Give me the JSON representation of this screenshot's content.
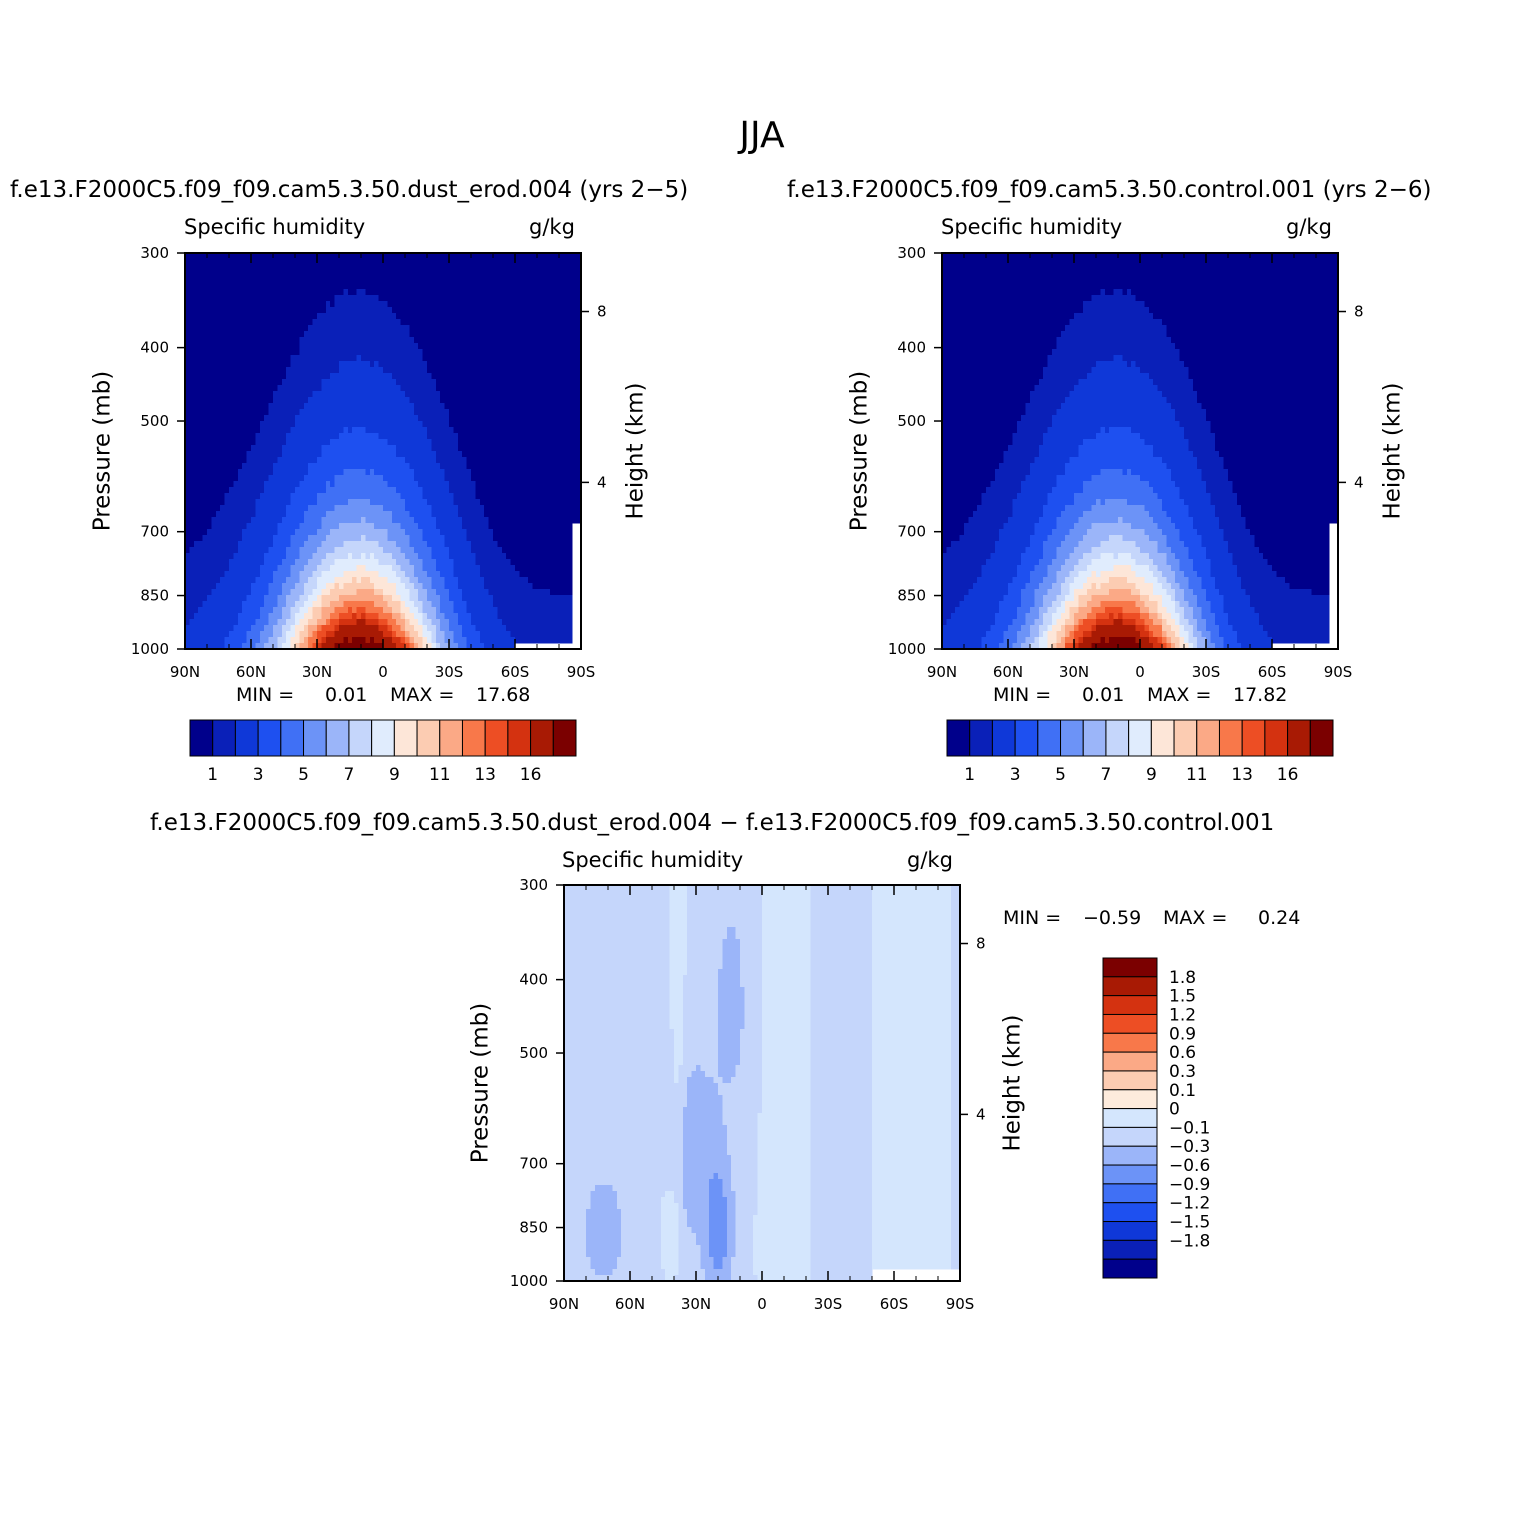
{
  "figure": {
    "title": "JJA",
    "season": "JJA"
  },
  "colors": {
    "abs_scale": [
      "#00008b",
      "#0a20b8",
      "#0f38d8",
      "#1e50f0",
      "#4070f5",
      "#6c93f7",
      "#9bb5f9",
      "#c5d6fb",
      "#e0ecfd",
      "#fde6d8",
      "#fcccb2",
      "#fba986",
      "#f8784a",
      "#ed4e24",
      "#d43210",
      "#a81a04",
      "#7b0000"
    ],
    "diff_scale": [
      "#00008b",
      "#0a20b8",
      "#0f38d8",
      "#1e50f0",
      "#4070f5",
      "#6c93f7",
      "#9bb5f9",
      "#c5d6fb",
      "#d4e6fd",
      "#fdebdc",
      "#fcccb2",
      "#fba986",
      "#f8784a",
      "#ed4e24",
      "#d43210",
      "#a81a04",
      "#7b0000"
    ]
  },
  "chart_data": [
    {
      "id": "panel-a",
      "type": "heatmap",
      "title": "f.e13.F2000C5.f09_f09.cam5.3.50.dust_erod.004 (yrs 2−5)",
      "field_label": "Specific humidity",
      "units": "g/kg",
      "xlabel": "",
      "ylabel": "Pressure (mb)",
      "ylabel_right": "Height (km)",
      "x_ticks": [
        "90N",
        "60N",
        "30N",
        "0",
        "30S",
        "60S",
        "90S"
      ],
      "x_tick_values": [
        90,
        60,
        30,
        0,
        -30,
        -60,
        -90
      ],
      "y_ticks": [
        "300",
        "400",
        "500",
        "700",
        "850",
        "1000"
      ],
      "y_tick_values": [
        300,
        400,
        500,
        700,
        850,
        1000
      ],
      "height_ticks": [
        "8",
        "4"
      ],
      "height_tick_values": [
        8,
        4
      ],
      "xlim": [
        90,
        -90
      ],
      "ylim": [
        1000,
        300
      ],
      "min_label": "MIN =",
      "min_value": "0.01",
      "max_label": "MAX =",
      "max_value": "17.68",
      "peak_q": 17.68,
      "peak_lat": 10,
      "colorbar_labels": [
        "1",
        "3",
        "5",
        "7",
        "9",
        "11",
        "13",
        "16"
      ],
      "levels": [
        0.5,
        1,
        2,
        3,
        4,
        5,
        6,
        7,
        8,
        9,
        10,
        11,
        12,
        13,
        14,
        16
      ]
    },
    {
      "id": "panel-b",
      "type": "heatmap",
      "title": "f.e13.F2000C5.f09_f09.cam5.3.50.control.001 (yrs 2−6)",
      "field_label": "Specific humidity",
      "units": "g/kg",
      "xlabel": "",
      "ylabel": "Pressure (mb)",
      "ylabel_right": "Height (km)",
      "x_ticks": [
        "90N",
        "60N",
        "30N",
        "0",
        "30S",
        "60S",
        "90S"
      ],
      "x_tick_values": [
        90,
        60,
        30,
        0,
        -30,
        -60,
        -90
      ],
      "y_ticks": [
        "300",
        "400",
        "500",
        "700",
        "850",
        "1000"
      ],
      "y_tick_values": [
        300,
        400,
        500,
        700,
        850,
        1000
      ],
      "height_ticks": [
        "8",
        "4"
      ],
      "height_tick_values": [
        8,
        4
      ],
      "xlim": [
        90,
        -90
      ],
      "ylim": [
        1000,
        300
      ],
      "min_label": "MIN =",
      "min_value": "0.01",
      "max_label": "MAX =",
      "max_value": "17.82",
      "peak_q": 17.82,
      "peak_lat": 10,
      "colorbar_labels": [
        "1",
        "3",
        "5",
        "7",
        "9",
        "11",
        "13",
        "16"
      ],
      "levels": [
        0.5,
        1,
        2,
        3,
        4,
        5,
        6,
        7,
        8,
        9,
        10,
        11,
        12,
        13,
        14,
        16
      ]
    },
    {
      "id": "panel-diff",
      "type": "heatmap",
      "title": "f.e13.F2000C5.f09_f09.cam5.3.50.dust_erod.004 − f.e13.F2000C5.f09_f09.cam5.3.50.control.001",
      "field_label": "Specific humidity",
      "units": "g/kg",
      "xlabel": "",
      "ylabel": "Pressure (mb)",
      "ylabel_right": "Height (km)",
      "x_ticks": [
        "90N",
        "60N",
        "30N",
        "0",
        "30S",
        "60S",
        "90S"
      ],
      "x_tick_values": [
        90,
        60,
        30,
        0,
        -30,
        -60,
        -90
      ],
      "y_ticks": [
        "300",
        "400",
        "500",
        "700",
        "850",
        "1000"
      ],
      "y_tick_values": [
        300,
        400,
        500,
        700,
        850,
        1000
      ],
      "height_ticks": [
        "8",
        "4"
      ],
      "height_tick_values": [
        8,
        4
      ],
      "xlim": [
        90,
        -90
      ],
      "ylim": [
        1000,
        300
      ],
      "min_label": "MIN =",
      "min_value": "−0.59",
      "max_label": "MAX =",
      "max_value": "0.24",
      "colorbar_labels": [
        "1.8",
        "1.5",
        "1.2",
        "0.9",
        "0.6",
        "0.3",
        "0.1",
        "0",
        "−0.1",
        "−0.3",
        "−0.6",
        "−0.9",
        "−1.2",
        "−1.5",
        "−1.8"
      ],
      "levels": [
        -1.8,
        -1.5,
        -1.2,
        -0.9,
        -0.6,
        -0.3,
        -0.1,
        0,
        0.1,
        0.3,
        0.6,
        0.9,
        1.2,
        1.5,
        1.8
      ]
    }
  ]
}
